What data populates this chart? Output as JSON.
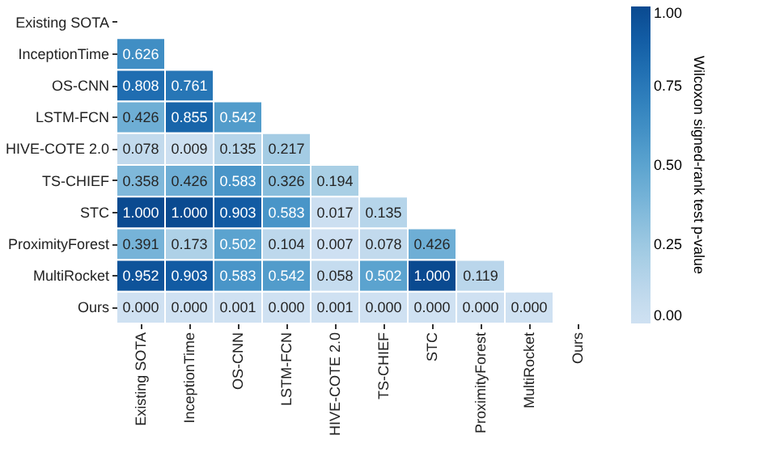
{
  "chart_data": {
    "type": "heatmap",
    "clabel": "Wilcoxon signed-rank test p-value",
    "categories": [
      "Existing SOTA",
      "InceptionTime",
      "OS-CNN",
      "LSTM-FCN",
      "HIVE-COTE 2.0",
      "TS-CHIEF",
      "STC",
      "ProximityForest",
      "MultiRocket",
      "Ours"
    ],
    "y_categories": [
      "Existing SOTA",
      "InceptionTime",
      "OS-CNN",
      "LSTM-FCN",
      "HIVE-COTE 2.0",
      "TS-CHIEF",
      "STC",
      "ProximityForest",
      "MultiRocket",
      "Ours"
    ],
    "cells": [
      [
        null,
        null,
        null,
        null,
        null,
        null,
        null,
        null,
        null,
        null
      ],
      [
        0.626,
        null,
        null,
        null,
        null,
        null,
        null,
        null,
        null,
        null
      ],
      [
        0.808,
        0.761,
        null,
        null,
        null,
        null,
        null,
        null,
        null,
        null
      ],
      [
        0.426,
        0.855,
        0.542,
        null,
        null,
        null,
        null,
        null,
        null,
        null
      ],
      [
        0.078,
        0.009,
        0.135,
        0.217,
        null,
        null,
        null,
        null,
        null,
        null
      ],
      [
        0.358,
        0.426,
        0.583,
        0.326,
        0.194,
        null,
        null,
        null,
        null,
        null
      ],
      [
        1.0,
        1.0,
        0.903,
        0.583,
        0.017,
        0.135,
        null,
        null,
        null,
        null
      ],
      [
        0.391,
        0.173,
        0.502,
        0.104,
        0.007,
        0.078,
        0.426,
        null,
        null,
        null
      ],
      [
        0.952,
        0.903,
        0.583,
        0.542,
        0.058,
        0.502,
        1.0,
        0.119,
        null,
        null
      ],
      [
        0.0,
        0.0,
        0.001,
        0.0,
        0.001,
        0.0,
        0.0,
        0.0,
        0.0,
        null
      ]
    ],
    "cell_labels": [
      [
        null,
        null,
        null,
        null,
        null,
        null,
        null,
        null,
        null,
        null
      ],
      [
        "0.626",
        null,
        null,
        null,
        null,
        null,
        null,
        null,
        null,
        null
      ],
      [
        "0.808",
        "0.761",
        null,
        null,
        null,
        null,
        null,
        null,
        null,
        null
      ],
      [
        "0.426",
        "0.855",
        "0.542",
        null,
        null,
        null,
        null,
        null,
        null,
        null
      ],
      [
        "0.078",
        "0.009",
        "0.135",
        "0.217",
        null,
        null,
        null,
        null,
        null,
        null
      ],
      [
        "0.358",
        "0.426",
        "0.583",
        "0.326",
        "0.194",
        null,
        null,
        null,
        null,
        null
      ],
      [
        "1.000",
        "1.000",
        "0.903",
        "0.583",
        "0.017",
        "0.135",
        null,
        null,
        null,
        null
      ],
      [
        "0.391",
        "0.173",
        "0.502",
        "0.104",
        "0.007",
        "0.078",
        "0.426",
        null,
        null,
        null
      ],
      [
        "0.952",
        "0.903",
        "0.583",
        "0.542",
        "0.058",
        "0.502",
        "1.000",
        "0.119",
        null,
        null
      ],
      [
        "0.000",
        "0.000",
        "0.001",
        "0.000",
        "0.001",
        "0.000",
        "0.000",
        "0.000",
        "0.000",
        null
      ]
    ],
    "clim": [
      0,
      1
    ],
    "cticks": [
      {
        "value": 0,
        "label": "0.00"
      },
      {
        "value": 0.25,
        "label": "0.25"
      },
      {
        "value": 0.5,
        "label": "0.50"
      },
      {
        "value": 0.75,
        "label": "0.75"
      },
      {
        "value": 1,
        "label": "1.00"
      }
    ]
  }
}
